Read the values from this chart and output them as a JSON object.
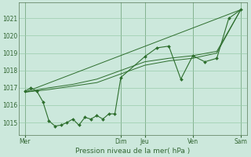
{
  "xlabel": "Pression niveau de la mer( hPa )",
  "bg_color": "#cce8dc",
  "grid_color": "#99ccaa",
  "line_color": "#2d6e2d",
  "ylim": [
    1014.3,
    1021.9
  ],
  "yticks": [
    1015,
    1016,
    1017,
    1018,
    1019,
    1020,
    1021
  ],
  "day_labels": [
    "Mer",
    "Dim",
    "Jeu",
    "Ven",
    "Sam"
  ],
  "day_positions": [
    0,
    48,
    60,
    84,
    108
  ],
  "xlim": [
    -3,
    111
  ],
  "wiggly_x": [
    0,
    3,
    6,
    9,
    12,
    15,
    18,
    21,
    24,
    27,
    30,
    33,
    36,
    39,
    42,
    45,
    48,
    60,
    66,
    72,
    78,
    84,
    90,
    96,
    102,
    108
  ],
  "wiggly_y": [
    1016.8,
    1017.0,
    1016.8,
    1016.2,
    1015.1,
    1014.8,
    1014.85,
    1015.0,
    1015.2,
    1014.85,
    1015.3,
    1015.2,
    1015.4,
    1015.2,
    1015.5,
    1015.5,
    1017.6,
    1018.8,
    1019.3,
    1019.4,
    1017.5,
    1018.85,
    1018.5,
    1018.7,
    1021.0,
    1021.5
  ],
  "trend1_x": [
    0,
    108
  ],
  "trend1_y": [
    1016.75,
    1021.5
  ],
  "trend2_x": [
    0,
    12,
    24,
    36,
    48,
    60,
    72,
    84,
    96,
    108
  ],
  "trend2_y": [
    1016.75,
    1016.9,
    1017.1,
    1017.3,
    1017.8,
    1018.3,
    1018.55,
    1018.7,
    1019.0,
    1021.5
  ],
  "trend3_x": [
    0,
    12,
    24,
    36,
    48,
    60,
    72,
    84,
    96,
    108
  ],
  "trend3_y": [
    1016.75,
    1017.0,
    1017.2,
    1017.5,
    1018.0,
    1018.5,
    1018.7,
    1018.85,
    1019.1,
    1021.5
  ],
  "vline_color": "#557755",
  "spine_color": "#557755",
  "tick_color": "#336633",
  "xlabel_color": "#336633",
  "xlabel_fontsize": 6.5,
  "tick_fontsize": 5.5
}
